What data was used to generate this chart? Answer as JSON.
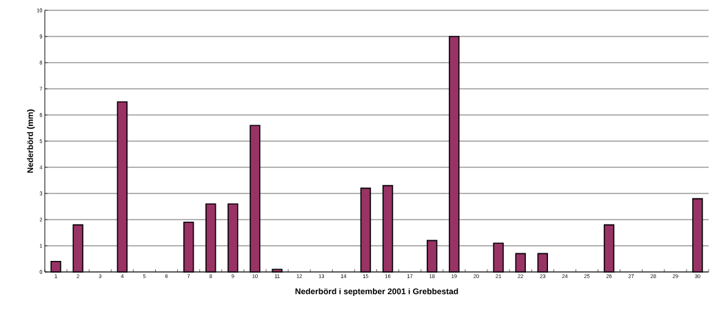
{
  "chart_data": {
    "type": "bar",
    "xlabel": "Nederbörd i september 2001 i Grebbestad",
    "ylabel": "Nederbörd (mm)",
    "categories": [
      "1",
      "2",
      "3",
      "4",
      "5",
      "6",
      "7",
      "8",
      "9",
      "10",
      "11",
      "12",
      "13",
      "14",
      "15",
      "16",
      "17",
      "18",
      "19",
      "20",
      "21",
      "22",
      "23",
      "24",
      "25",
      "26",
      "27",
      "28",
      "29",
      "30"
    ],
    "values": [
      0.4,
      1.8,
      0,
      6.5,
      0,
      0,
      1.9,
      2.6,
      2.6,
      5.6,
      0.1,
      0,
      0,
      0,
      3.2,
      3.3,
      0,
      1.2,
      9.0,
      0,
      1.1,
      0.7,
      0.7,
      0,
      0,
      1.8,
      0,
      0,
      0,
      2.8
    ],
    "color": "#993366",
    "ylim": [
      0,
      10
    ],
    "yticks": [
      0,
      1,
      2,
      3,
      4,
      5,
      6,
      7,
      8,
      9,
      10
    ],
    "grid": "y"
  }
}
